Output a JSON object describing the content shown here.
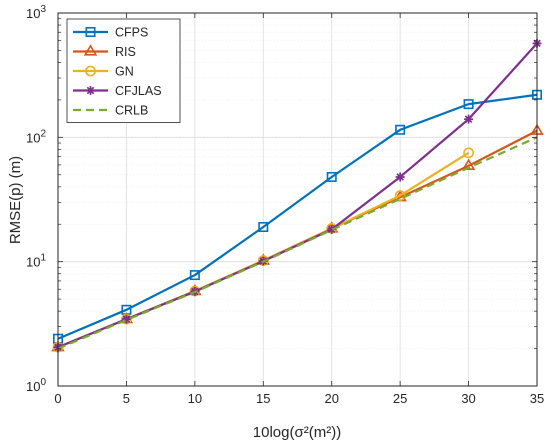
{
  "chart_data": {
    "type": "line",
    "xlabel": "10log(σ²(m²))",
    "ylabel": "RMSE(p) (m)",
    "yscale": "log",
    "xlim": [
      0,
      35
    ],
    "ylim": [
      1,
      1000
    ],
    "grid": true,
    "legend_position": "top-left",
    "x_ticks": [
      "0",
      "5",
      "10",
      "15",
      "20",
      "25",
      "30",
      "35"
    ],
    "y_ticks": [
      {
        "base": "10",
        "exp": "0"
      },
      {
        "base": "10",
        "exp": "1"
      },
      {
        "base": "10",
        "exp": "2"
      },
      {
        "base": "10",
        "exp": "3"
      }
    ],
    "series": [
      {
        "name": "CFPS",
        "color": "#0072BD",
        "marker": "square",
        "dash": "solid",
        "x": [
          0,
          5,
          10,
          15,
          20,
          25,
          30,
          35
        ],
        "values": [
          2.4,
          4.1,
          7.8,
          19,
          48,
          115,
          185,
          220
        ]
      },
      {
        "name": "RIS",
        "color": "#D95319",
        "marker": "triangle",
        "dash": "solid",
        "x": [
          0,
          5,
          10,
          15,
          20,
          25,
          30,
          35
        ],
        "values": [
          2.05,
          3.45,
          5.8,
          10.2,
          18.5,
          33,
          59,
          113
        ]
      },
      {
        "name": "GN",
        "color": "#EDB120",
        "marker": "circle",
        "dash": "solid",
        "x": [
          0,
          5,
          10,
          15,
          20,
          25,
          30
        ],
        "values": [
          2.05,
          3.45,
          5.8,
          10.2,
          18.5,
          34,
          75
        ]
      },
      {
        "name": "CFJLAS",
        "color": "#7E2F8E",
        "marker": "star",
        "dash": "solid",
        "x": [
          0,
          5,
          10,
          15,
          20,
          25,
          30,
          35
        ],
        "values": [
          2.05,
          3.45,
          5.75,
          10.1,
          18.2,
          48,
          140,
          570
        ]
      },
      {
        "name": "CRLB",
        "color": "#77AC30",
        "marker": "none",
        "dash": "dashed",
        "x": [
          0,
          5,
          10,
          15,
          20,
          25,
          30,
          35
        ],
        "values": [
          2.0,
          3.4,
          5.7,
          10.0,
          18.0,
          32,
          57,
          100
        ]
      }
    ]
  }
}
